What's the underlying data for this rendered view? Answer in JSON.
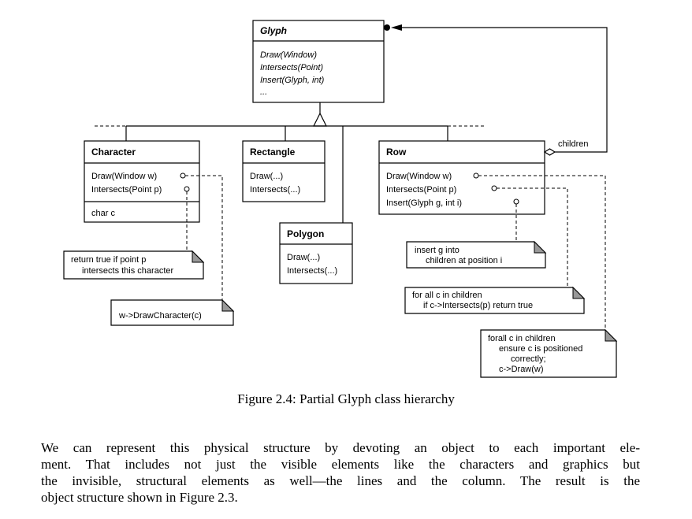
{
  "diagram": {
    "classes": {
      "glyph": {
        "name": "Glyph",
        "ops": [
          "Draw(Window)",
          "Intersects(Point)",
          "Insert(Glyph, int)",
          "..."
        ]
      },
      "character": {
        "name": "Character",
        "ops": [
          "Draw(Window w)",
          "Intersects(Point p)"
        ],
        "attrs": [
          "char c"
        ]
      },
      "rectangle": {
        "name": "Rectangle",
        "ops": [
          "Draw(...)",
          "Intersects(...)"
        ]
      },
      "polygon": {
        "name": "Polygon",
        "ops": [
          "Draw(...)",
          "Intersects(...)"
        ]
      },
      "row": {
        "name": "Row",
        "ops": [
          "Draw(Window w)",
          "Intersects(Point p)",
          "Insert(Glyph g, int i)"
        ]
      }
    },
    "association_label": "children",
    "notes": {
      "char_intersects": [
        "return true if point p",
        "intersects this character"
      ],
      "char_draw": [
        "w->DrawCharacter(c)"
      ],
      "row_insert": [
        "insert g into",
        "children at position i"
      ],
      "row_intersects": [
        "for all c in children",
        "if c->Intersects(p) return true"
      ],
      "row_draw": [
        "forall c in children",
        "ensure c is positioned",
        "correctly;",
        "c->Draw(w)"
      ]
    }
  },
  "caption": "Figure 2.4: Partial Glyph class hierarchy",
  "body_lines": [
    "We can represent this physical structure by devoting an object to each important ele-",
    "ment. That includes not just the visible elements like the characters and graphics but",
    "the invisible, structural elements as well—the lines and the column. The result is the",
    "object structure shown in Figure 2.3."
  ]
}
